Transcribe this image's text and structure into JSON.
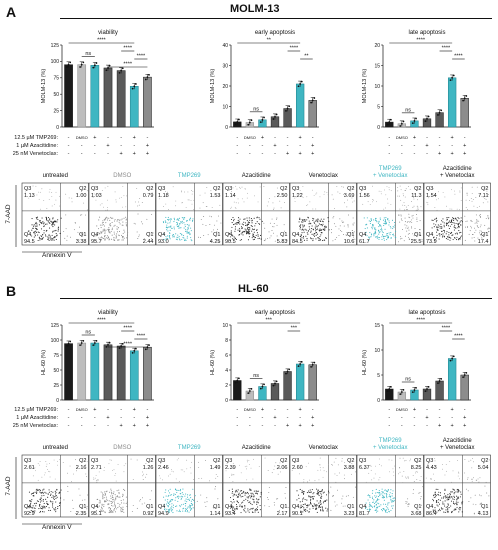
{
  "colors": {
    "black": "#1a1a1a",
    "dark_gray": "#5a5a5a",
    "mid_gray": "#8c8c8c",
    "light_gray": "#bdbdbd",
    "teal": "#3fb6c2",
    "dark_teal": "#1e7f8b"
  },
  "treatment_legend": {
    "rows": [
      "12.5 µM TMP269:",
      "1 µM Azacitidine:",
      "25 nM Venetoclax:"
    ],
    "cells": [
      [
        "-",
        "DMSO",
        "+",
        "-",
        "-",
        "+",
        "-"
      ],
      [
        "-",
        "-",
        "-",
        "+",
        "-",
        "-",
        "+"
      ],
      [
        "-",
        "-",
        "-",
        "-",
        "+",
        "+",
        "+"
      ]
    ]
  },
  "flow_conditions": [
    {
      "label": "untreated",
      "color": "#111111"
    },
    {
      "label": "DMSO",
      "color": "#8c8c8c"
    },
    {
      "label": "TMP269",
      "color": "#3fb6c2"
    },
    {
      "label": "Azacitidine",
      "color": "#111111"
    },
    {
      "label": "Venetoclax",
      "color": "#111111"
    },
    {
      "label": "TMP269\n+ Venetoclax",
      "color": "#3fb6c2"
    },
    {
      "label": "Azacitidine\n+ Venetoclax",
      "color": "#111111"
    }
  ],
  "flow_axes": {
    "y": "7-AAD",
    "x": "Annexin V"
  },
  "panels": [
    {
      "letter": "A",
      "title": "MOLM-13",
      "ylabel": "MOLM-13 (%)",
      "bar_charts": [
        {
          "title": "viability",
          "ylim": [
            0,
            125
          ],
          "yticks": [
            0,
            25,
            50,
            75,
            100,
            125
          ],
          "values": [
            95,
            95,
            94,
            90,
            86,
            62,
            76
          ],
          "sig": [
            {
              "text": "ns",
              "level": 0
            },
            {
              "text": "****",
              "level": 0
            },
            {
              "text": "****",
              "level": 1
            },
            {
              "text": "****",
              "level": 2
            },
            {
              "text": "****",
              "level": 3
            }
          ]
        },
        {
          "title": "early apoptosis",
          "ylim": [
            0,
            40
          ],
          "yticks": [
            0,
            10,
            20,
            30,
            40
          ],
          "values": [
            2.5,
            2.2,
            3.5,
            5,
            9,
            21,
            13
          ],
          "sig": [
            {
              "text": "ns",
              "level": 0
            },
            {
              "text": "**",
              "level": 0
            },
            {
              "text": "****",
              "level": 1
            },
            {
              "text": "**",
              "level": 2
            }
          ]
        },
        {
          "title": "late apoptosis",
          "ylim": [
            0,
            20
          ],
          "yticks": [
            0,
            5,
            10,
            15,
            20
          ],
          "values": [
            1.2,
            0.8,
            1.5,
            2,
            3.5,
            12,
            7
          ],
          "sig": [
            {
              "text": "ns",
              "level": 0
            },
            {
              "text": "****",
              "level": 0
            },
            {
              "text": "****",
              "level": 1
            },
            {
              "text": "****",
              "level": 2
            }
          ]
        }
      ],
      "quadrants": [
        {
          "q3": "1.13",
          "q2": "1.00",
          "q4": "94.5",
          "q1": "3.38"
        },
        {
          "q3": "1.03",
          "q2": "0.79",
          "q4": "95.7",
          "q1": "2.44"
        },
        {
          "q3": "1.18",
          "q2": "1.53",
          "q4": "93.0",
          "q1": "4.25"
        },
        {
          "q3": "1.14",
          "q2": "2.50",
          "q4": "90.5",
          "q1": "5.83"
        },
        {
          "q3": "1.22",
          "q2": "3.69",
          "q4": "84.5",
          "q1": "10.6"
        },
        {
          "q3": "1.56",
          "q2": "11.3",
          "q4": "61.7",
          "q1": "25.5"
        },
        {
          "q3": "1.54",
          "q2": "7.11",
          "q4": "73.9",
          "q1": "17.4"
        }
      ]
    },
    {
      "letter": "B",
      "title": "HL-60",
      "ylabel": "HL-60 (%)",
      "bar_charts": [
        {
          "title": "viability",
          "ylim": [
            0,
            125
          ],
          "yticks": [
            0,
            25,
            50,
            75,
            100,
            125
          ],
          "values": [
            94,
            95,
            95,
            92,
            90,
            82,
            88
          ],
          "sig": [
            {
              "text": "ns",
              "level": 0
            },
            {
              "text": "****",
              "level": 0
            },
            {
              "text": "****",
              "level": 1
            },
            {
              "text": "****",
              "level": 2
            },
            {
              "text": "****",
              "level": 3
            }
          ]
        },
        {
          "title": "early apoptosis",
          "ylim": [
            0,
            10
          ],
          "yticks": [
            0,
            2,
            4,
            6,
            8,
            10
          ],
          "values": [
            2.6,
            1.2,
            1.8,
            2.2,
            3.8,
            4.8,
            4.7
          ],
          "sig": [
            {
              "text": "ns",
              "level": 0
            },
            {
              "text": "***",
              "level": 0
            },
            {
              "text": "***",
              "level": 1
            }
          ]
        },
        {
          "title": "late apoptosis",
          "ylim": [
            0,
            15
          ],
          "yticks": [
            0,
            5,
            10,
            15
          ],
          "values": [
            2.2,
            1.6,
            2.0,
            2.2,
            3.8,
            8.3,
            5.0
          ],
          "sig": [
            {
              "text": "ns",
              "level": 0
            },
            {
              "text": "****",
              "level": 0
            },
            {
              "text": "****",
              "level": 1
            },
            {
              "text": "****",
              "level": 2
            }
          ]
        }
      ],
      "quadrants": [
        {
          "q3": "2.61",
          "q2": "2.16",
          "q4": "92.9",
          "q1": "2.35"
        },
        {
          "q3": "2.71",
          "q2": "1.26",
          "q4": "95.1",
          "q1": "0.92"
        },
        {
          "q3": "2.46",
          "q2": "1.49",
          "q4": "94.9",
          "q1": "1.14"
        },
        {
          "q3": "2.39",
          "q2": "2.06",
          "q4": "93.4",
          "q1": "2.17"
        },
        {
          "q3": "2.60",
          "q2": "3.88",
          "q4": "90.1",
          "q1": "3.23"
        },
        {
          "q3": "6.37",
          "q2": "8.25",
          "q4": "81.7",
          "q1": "3.68"
        },
        {
          "q3": "4.43",
          "q2": "5.04",
          "q4": "86.4",
          "q1": "4.13"
        }
      ]
    }
  ],
  "chart_data": [
    {
      "type": "bar",
      "title": "viability",
      "ylabel": "MOLM-13 (%)",
      "ylim": [
        0,
        125
      ],
      "series": [
        {
          "values": [
            95,
            95,
            94,
            90,
            86,
            62,
            76
          ]
        }
      ]
    },
    {
      "type": "bar",
      "title": "early apoptosis",
      "ylabel": "MOLM-13 (%)",
      "ylim": [
        0,
        40
      ],
      "series": [
        {
          "values": [
            2.5,
            2.2,
            3.5,
            5,
            9,
            21,
            13
          ]
        }
      ]
    },
    {
      "type": "bar",
      "title": "late apoptosis",
      "ylabel": "MOLM-13 (%)",
      "ylim": [
        0,
        20
      ],
      "series": [
        {
          "values": [
            1.2,
            0.8,
            1.5,
            2,
            3.5,
            12,
            7
          ]
        }
      ]
    },
    {
      "type": "bar",
      "title": "viability",
      "ylabel": "HL-60 (%)",
      "ylim": [
        0,
        125
      ],
      "series": [
        {
          "values": [
            94,
            95,
            95,
            92,
            90,
            82,
            88
          ]
        }
      ]
    },
    {
      "type": "bar",
      "title": "early apoptosis",
      "ylabel": "HL-60 (%)",
      "ylim": [
        0,
        10
      ],
      "series": [
        {
          "values": [
            2.6,
            1.2,
            1.8,
            2.2,
            3.8,
            4.8,
            4.7
          ]
        }
      ]
    },
    {
      "type": "bar",
      "title": "late apoptosis",
      "ylabel": "HL-60 (%)",
      "ylim": [
        0,
        15
      ],
      "series": [
        {
          "values": [
            2.2,
            1.6,
            2.0,
            2.2,
            3.8,
            8.3,
            5.0
          ]
        }
      ]
    }
  ]
}
